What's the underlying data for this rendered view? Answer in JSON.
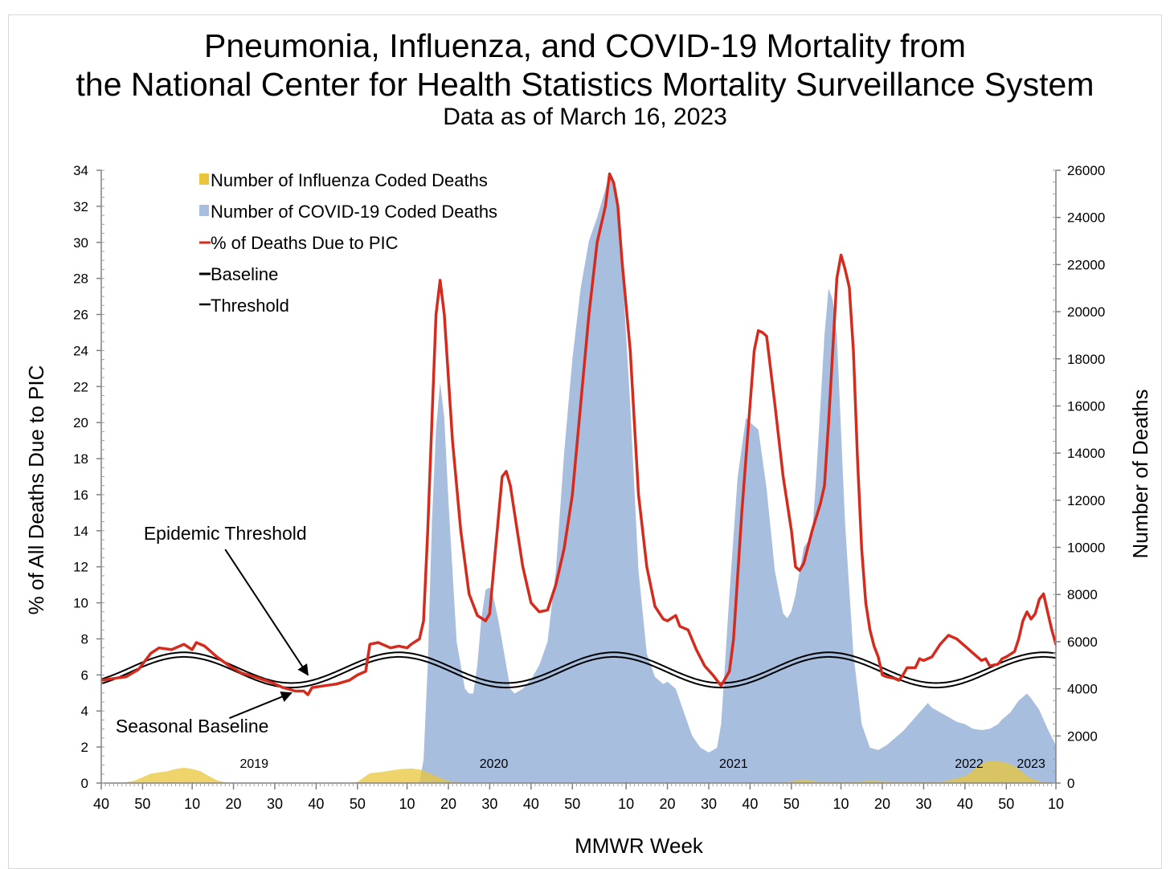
{
  "page": {
    "title_line1": "Pneumonia, Influenza, and COVID-19 Mortality from",
    "title_line2": "the National Center for Health Statistics Mortality Surveillance System",
    "subtitle": "Data as of March 16, 2023"
  },
  "colors": {
    "influenza": "#e8c53a",
    "covid": "#a8bede",
    "pic": "#d52b1e",
    "baseline": "#000000",
    "threshold": "#000000",
    "overlap": "#9a9a60"
  },
  "chart_data": {
    "type": "area",
    "xlabel": "MMWR Week",
    "ylabel_left": "% of All Deaths Due to PIC",
    "ylabel_right": "Number of Deaths",
    "ylim_left": [
      0,
      34
    ],
    "ylim_right": [
      0,
      26000
    ],
    "left_ticks": [
      0,
      2,
      4,
      6,
      8,
      10,
      12,
      14,
      16,
      18,
      20,
      22,
      24,
      26,
      28,
      30,
      32,
      34
    ],
    "right_ticks": [
      0,
      2000,
      4000,
      6000,
      8000,
      10000,
      12000,
      14000,
      16000,
      18000,
      20000,
      22000,
      24000,
      26000
    ],
    "x_ticks": [
      {
        "label": "40",
        "i": 0
      },
      {
        "label": "50",
        "i": 10
      },
      {
        "label": "10",
        "i": 22
      },
      {
        "label": "20",
        "i": 32
      },
      {
        "label": "30",
        "i": 42
      },
      {
        "label": "40",
        "i": 52
      },
      {
        "label": "50",
        "i": 62
      },
      {
        "label": "10",
        "i": 74
      },
      {
        "label": "20",
        "i": 84
      },
      {
        "label": "30",
        "i": 94
      },
      {
        "label": "40",
        "i": 104
      },
      {
        "label": "50",
        "i": 114
      },
      {
        "label": "10",
        "i": 127
      },
      {
        "label": "20",
        "i": 137
      },
      {
        "label": "30",
        "i": 147
      },
      {
        "label": "40",
        "i": 157
      },
      {
        "label": "50",
        "i": 167
      },
      {
        "label": "10",
        "i": 179
      },
      {
        "label": "20",
        "i": 189
      },
      {
        "label": "30",
        "i": 199
      },
      {
        "label": "40",
        "i": 209
      },
      {
        "label": "50",
        "i": 219
      },
      {
        "label": "10",
        "i": 231
      }
    ],
    "x_max_index": 231,
    "year_labels": [
      {
        "label": "2019",
        "i": 37
      },
      {
        "label": "2020",
        "i": 95
      },
      {
        "label": "2021",
        "i": 153
      },
      {
        "label": "2022",
        "i": 210
      },
      {
        "label": "2023",
        "i": 225
      }
    ],
    "legend": [
      {
        "label": "Number of Influenza Coded Deaths",
        "key": "influenza",
        "kind": "area"
      },
      {
        "label": "Number of COVID-19 Coded Deaths",
        "key": "covid",
        "kind": "area"
      },
      {
        "label": "% of Deaths Due to PIC",
        "key": "pic",
        "kind": "line"
      },
      {
        "label": "Baseline",
        "key": "baseline",
        "kind": "line"
      },
      {
        "label": "Threshold",
        "key": "threshold",
        "kind": "line"
      }
    ],
    "annotations": [
      {
        "label": "Epidemic Threshold",
        "text_x": 30,
        "text_y": 13.5,
        "arrow_to_x": 50,
        "arrow_to_y": 6.0
      },
      {
        "label": "Seasonal Baseline",
        "text_x": 22,
        "text_y": 2.8,
        "arrow_to_x": 46,
        "arrow_to_y": 5.0
      }
    ],
    "baseline": {
      "mean": 6.15,
      "amplitude": 0.85,
      "peak_index": 20,
      "period": 52
    },
    "threshold_offset": 0.25,
    "series": {
      "pic_percent": [
        [
          0,
          5.7
        ],
        [
          3,
          5.8
        ],
        [
          6,
          5.9
        ],
        [
          9,
          6.3
        ],
        [
          12,
          7.2
        ],
        [
          14,
          7.5
        ],
        [
          17,
          7.4
        ],
        [
          20,
          7.7
        ],
        [
          22,
          7.4
        ],
        [
          23,
          7.8
        ],
        [
          25,
          7.6
        ],
        [
          28,
          7.0
        ],
        [
          31,
          6.5
        ],
        [
          34,
          6.1
        ],
        [
          37,
          5.9
        ],
        [
          41,
          5.6
        ],
        [
          44,
          5.3
        ],
        [
          47,
          5.1
        ],
        [
          49,
          5.1
        ],
        [
          50,
          4.9
        ],
        [
          51,
          5.3
        ],
        [
          54,
          5.4
        ],
        [
          57,
          5.5
        ],
        [
          60,
          5.7
        ],
        [
          62,
          6.0
        ],
        [
          64,
          6.2
        ],
        [
          65,
          7.7
        ],
        [
          67,
          7.8
        ],
        [
          70,
          7.5
        ],
        [
          72,
          7.6
        ],
        [
          74,
          7.5
        ],
        [
          75,
          7.7
        ],
        [
          77,
          8.0
        ],
        [
          78,
          9.0
        ],
        [
          79,
          14.0
        ],
        [
          80,
          20.0
        ],
        [
          81,
          26.0
        ],
        [
          82,
          27.9
        ],
        [
          83,
          26.0
        ],
        [
          85,
          19.0
        ],
        [
          87,
          14.0
        ],
        [
          89,
          10.5
        ],
        [
          91,
          9.3
        ],
        [
          93,
          9.0
        ],
        [
          94,
          9.4
        ],
        [
          95,
          12.0
        ],
        [
          97,
          17.0
        ],
        [
          98,
          17.3
        ],
        [
          99,
          16.5
        ],
        [
          101,
          13.5
        ],
        [
          102,
          12.0
        ],
        [
          104,
          10.0
        ],
        [
          106,
          9.5
        ],
        [
          108,
          9.6
        ],
        [
          110,
          11.0
        ],
        [
          112,
          13.0
        ],
        [
          114,
          16.0
        ],
        [
          116,
          21.0
        ],
        [
          118,
          26.0
        ],
        [
          120,
          30.0
        ],
        [
          122,
          32.0
        ],
        [
          123,
          33.8
        ],
        [
          124,
          33.3
        ],
        [
          125,
          32.0
        ],
        [
          126,
          29.0
        ],
        [
          128,
          24.0
        ],
        [
          130,
          16.0
        ],
        [
          132,
          12.0
        ],
        [
          134,
          9.8
        ],
        [
          136,
          9.1
        ],
        [
          137,
          9.0
        ],
        [
          139,
          9.3
        ],
        [
          140,
          8.7
        ],
        [
          142,
          8.5
        ],
        [
          144,
          7.4
        ],
        [
          146,
          6.5
        ],
        [
          148,
          6.0
        ],
        [
          150,
          5.4
        ],
        [
          152,
          6.2
        ],
        [
          153,
          8.0
        ],
        [
          155,
          15.0
        ],
        [
          157,
          21.0
        ],
        [
          158,
          24.0
        ],
        [
          159,
          25.1
        ],
        [
          160,
          25.0
        ],
        [
          161,
          24.8
        ],
        [
          163,
          21.0
        ],
        [
          165,
          17.0
        ],
        [
          167,
          14.0
        ],
        [
          168,
          12.0
        ],
        [
          169,
          11.8
        ],
        [
          170,
          12.2
        ],
        [
          172,
          14.0
        ],
        [
          174,
          15.5
        ],
        [
          175,
          16.5
        ],
        [
          176,
          20.0
        ],
        [
          177,
          24.0
        ],
        [
          178,
          28.0
        ],
        [
          179,
          29.3
        ],
        [
          180,
          28.5
        ],
        [
          181,
          27.5
        ],
        [
          182,
          24.0
        ],
        [
          183,
          18.0
        ],
        [
          184,
          13.0
        ],
        [
          185,
          10.0
        ],
        [
          186,
          8.5
        ],
        [
          187,
          7.6
        ],
        [
          188,
          7.0
        ],
        [
          189,
          6.0
        ],
        [
          190,
          5.9
        ],
        [
          192,
          5.8
        ],
        [
          193,
          5.7
        ],
        [
          194,
          6.0
        ],
        [
          195,
          6.4
        ],
        [
          197,
          6.4
        ],
        [
          198,
          6.9
        ],
        [
          199,
          6.8
        ],
        [
          201,
          7.0
        ],
        [
          203,
          7.7
        ],
        [
          205,
          8.2
        ],
        [
          207,
          8.0
        ],
        [
          209,
          7.6
        ],
        [
          211,
          7.2
        ],
        [
          213,
          6.8
        ],
        [
          214,
          6.9
        ],
        [
          215,
          6.5
        ],
        [
          217,
          6.6
        ],
        [
          218,
          6.9
        ],
        [
          219,
          7.0
        ],
        [
          221,
          7.3
        ],
        [
          222,
          8.0
        ],
        [
          223,
          9.0
        ],
        [
          224,
          9.5
        ],
        [
          225,
          9.1
        ],
        [
          226,
          9.4
        ],
        [
          227,
          10.2
        ],
        [
          228,
          10.5
        ],
        [
          229,
          9.5
        ],
        [
          230,
          8.5
        ],
        [
          231,
          7.7
        ],
        [
          232,
          7.5
        ],
        [
          233,
          7.0
        ],
        [
          235,
          7.0
        ],
        [
          237,
          6.6
        ],
        [
          238,
          6.6
        ]
      ],
      "covid_deaths": [
        [
          0,
          0
        ],
        [
          77,
          0
        ],
        [
          78,
          1000
        ],
        [
          79,
          5000
        ],
        [
          80,
          11000
        ],
        [
          81,
          15000
        ],
        [
          82,
          17000
        ],
        [
          83,
          15500
        ],
        [
          84,
          12000
        ],
        [
          85,
          9000
        ],
        [
          86,
          6000
        ],
        [
          87,
          5000
        ],
        [
          88,
          4000
        ],
        [
          89,
          3800
        ],
        [
          90,
          3800
        ],
        [
          91,
          5000
        ],
        [
          92,
          7000
        ],
        [
          93,
          8200
        ],
        [
          94,
          8300
        ],
        [
          95,
          7800
        ],
        [
          96,
          7000
        ],
        [
          97,
          6000
        ],
        [
          98,
          5000
        ],
        [
          99,
          4000
        ],
        [
          100,
          3800
        ],
        [
          102,
          4000
        ],
        [
          104,
          4400
        ],
        [
          106,
          5000
        ],
        [
          108,
          6000
        ],
        [
          110,
          9000
        ],
        [
          112,
          14000
        ],
        [
          114,
          18000
        ],
        [
          116,
          21000
        ],
        [
          118,
          23000
        ],
        [
          120,
          24000
        ],
        [
          122,
          25200
        ],
        [
          123,
          25800
        ],
        [
          124,
          25400
        ],
        [
          125,
          24000
        ],
        [
          126,
          22000
        ],
        [
          128,
          16000
        ],
        [
          130,
          9000
        ],
        [
          132,
          5500
        ],
        [
          134,
          4500
        ],
        [
          136,
          4200
        ],
        [
          137,
          4300
        ],
        [
          139,
          4000
        ],
        [
          141,
          3000
        ],
        [
          143,
          2000
        ],
        [
          145,
          1500
        ],
        [
          147,
          1300
        ],
        [
          149,
          1500
        ],
        [
          150,
          2500
        ],
        [
          152,
          8000
        ],
        [
          154,
          13000
        ],
        [
          156,
          15500
        ],
        [
          157,
          15300
        ],
        [
          159,
          15000
        ],
        [
          161,
          12500
        ],
        [
          163,
          9000
        ],
        [
          165,
          7200
        ],
        [
          166,
          7000
        ],
        [
          167,
          7300
        ],
        [
          168,
          8000
        ],
        [
          170,
          10000
        ],
        [
          172,
          10500
        ],
        [
          173,
          13000
        ],
        [
          174,
          16000
        ],
        [
          175,
          19000
        ],
        [
          176,
          21000
        ],
        [
          177,
          20500
        ],
        [
          178,
          19000
        ],
        [
          180,
          11000
        ],
        [
          182,
          5500
        ],
        [
          184,
          2500
        ],
        [
          186,
          1500
        ],
        [
          188,
          1400
        ],
        [
          190,
          1600
        ],
        [
          192,
          1900
        ],
        [
          194,
          2200
        ],
        [
          196,
          2600
        ],
        [
          198,
          3000
        ],
        [
          200,
          3400
        ],
        [
          201,
          3200
        ],
        [
          203,
          3000
        ],
        [
          205,
          2800
        ],
        [
          207,
          2600
        ],
        [
          209,
          2500
        ],
        [
          211,
          2300
        ],
        [
          213,
          2250
        ],
        [
          215,
          2300
        ],
        [
          217,
          2500
        ],
        [
          218,
          2700
        ],
        [
          220,
          3000
        ],
        [
          222,
          3500
        ],
        [
          224,
          3800
        ],
        [
          225,
          3600
        ],
        [
          227,
          3100
        ],
        [
          229,
          2300
        ],
        [
          231,
          1600
        ],
        [
          232,
          1400
        ],
        [
          233,
          1000
        ],
        [
          234,
          500
        ],
        [
          235,
          0
        ],
        [
          238,
          0
        ]
      ],
      "influenza_deaths": [
        [
          0,
          0
        ],
        [
          5,
          10
        ],
        [
          8,
          100
        ],
        [
          10,
          250
        ],
        [
          12,
          400
        ],
        [
          14,
          450
        ],
        [
          16,
          500
        ],
        [
          18,
          600
        ],
        [
          20,
          650
        ],
        [
          22,
          600
        ],
        [
          24,
          500
        ],
        [
          26,
          300
        ],
        [
          28,
          120
        ],
        [
          30,
          30
        ],
        [
          32,
          0
        ],
        [
          60,
          0
        ],
        [
          62,
          50
        ],
        [
          64,
          300
        ],
        [
          65,
          420
        ],
        [
          67,
          450
        ],
        [
          69,
          500
        ],
        [
          71,
          560
        ],
        [
          73,
          600
        ],
        [
          75,
          620
        ],
        [
          77,
          580
        ],
        [
          79,
          450
        ],
        [
          81,
          300
        ],
        [
          83,
          150
        ],
        [
          85,
          60
        ],
        [
          87,
          20
        ],
        [
          90,
          0
        ],
        [
          162,
          0
        ],
        [
          165,
          20
        ],
        [
          168,
          100
        ],
        [
          170,
          150
        ],
        [
          172,
          100
        ],
        [
          174,
          50
        ],
        [
          178,
          30
        ],
        [
          182,
          60
        ],
        [
          186,
          100
        ],
        [
          190,
          80
        ],
        [
          194,
          60
        ],
        [
          198,
          40
        ],
        [
          201,
          30
        ],
        [
          204,
          80
        ],
        [
          207,
          200
        ],
        [
          209,
          300
        ],
        [
          210,
          400
        ],
        [
          212,
          700
        ],
        [
          214,
          900
        ],
        [
          216,
          950
        ],
        [
          218,
          900
        ],
        [
          220,
          800
        ],
        [
          222,
          600
        ],
        [
          224,
          300
        ],
        [
          226,
          120
        ],
        [
          228,
          40
        ],
        [
          230,
          10
        ],
        [
          232,
          0
        ]
      ]
    }
  }
}
